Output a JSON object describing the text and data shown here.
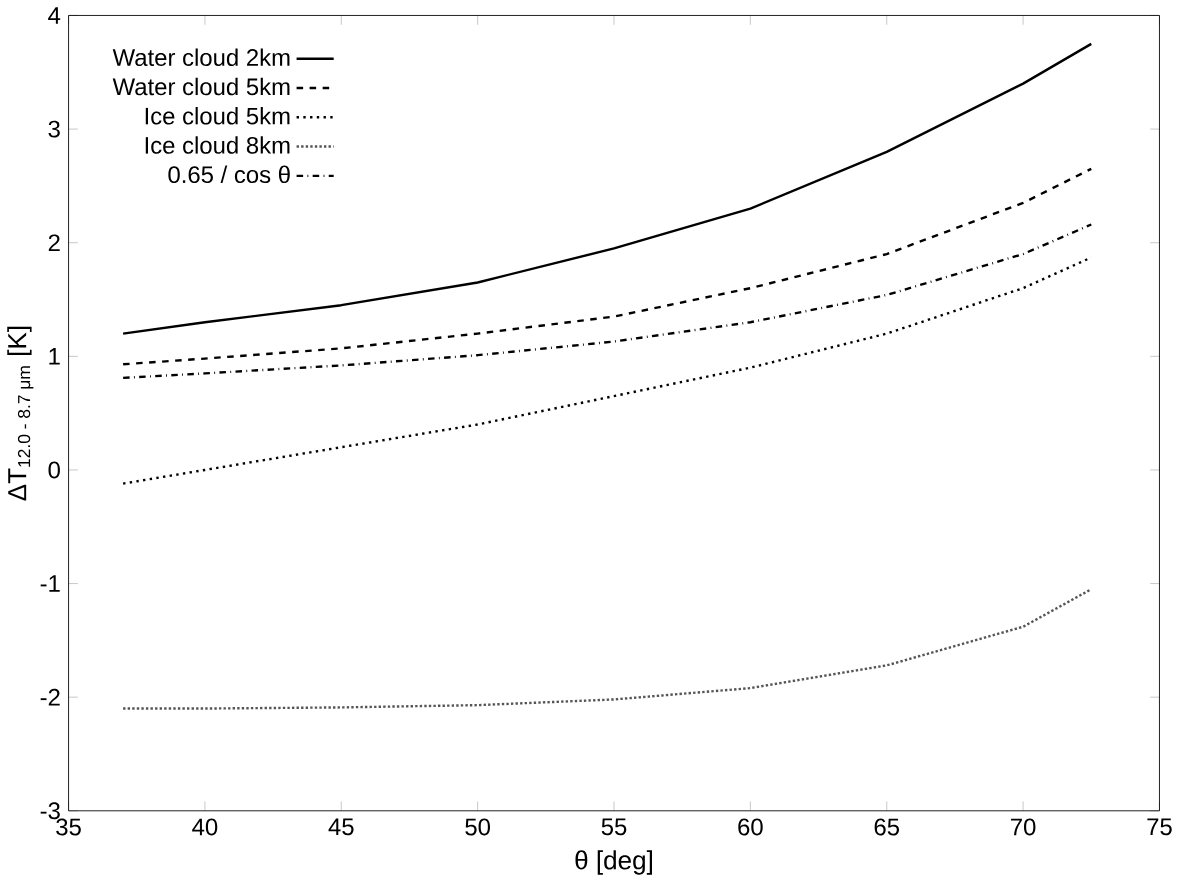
{
  "chart_data": {
    "type": "line",
    "xlabel": "θ [deg]",
    "ylabel": "ΔT$_{12.0 - 8.7 μm}$ [K]",
    "xlim": [
      35,
      75
    ],
    "xticks": [
      35,
      40,
      45,
      50,
      55,
      60,
      65,
      70,
      75
    ],
    "ylim": [
      -3,
      4
    ],
    "yticks": [
      -3,
      -2,
      -1,
      0,
      1,
      2,
      3,
      4
    ],
    "legend": "top left",
    "marker": "none",
    "grid": false,
    "series": [
      {
        "name": "Water cloud 2km",
        "color": "#000000",
        "line_style": "solid",
        "x": [
          37,
          40,
          45,
          50,
          55,
          60,
          65,
          70,
          72.5
        ],
        "values": [
          1.2,
          1.3,
          1.45,
          1.65,
          1.95,
          2.3,
          2.8,
          3.4,
          3.75
        ]
      },
      {
        "name": "Water cloud 5km",
        "color": "#000000",
        "line_style": "dashed",
        "x": [
          37,
          40,
          45,
          50,
          55,
          60,
          65,
          70,
          72.5
        ],
        "values": [
          0.93,
          0.98,
          1.07,
          1.2,
          1.35,
          1.6,
          1.9,
          2.35,
          2.65
        ]
      },
      {
        "name": "Ice cloud 5km",
        "color": "#000000",
        "line_style": "dotted",
        "x": [
          37,
          40,
          45,
          50,
          55,
          60,
          65,
          70,
          72.5
        ],
        "values": [
          -0.12,
          0.0,
          0.2,
          0.4,
          0.65,
          0.9,
          1.2,
          1.6,
          1.87
        ]
      },
      {
        "name": "Ice cloud 8km",
        "color": "#555555",
        "line_style": "densely dotted",
        "x": [
          37,
          40,
          45,
          50,
          55,
          60,
          65,
          70,
          72.5
        ],
        "values": [
          -2.1,
          -2.1,
          -2.09,
          -2.07,
          -2.02,
          -1.92,
          -1.72,
          -1.38,
          -1.05
        ]
      },
      {
        "name": "0.65 / cos θ",
        "color": "#000000",
        "line_style": "dashdotted",
        "x": [
          37,
          40,
          45,
          50,
          55,
          60,
          65,
          70,
          72.5
        ],
        "values": [
          0.81,
          0.85,
          0.92,
          1.01,
          1.13,
          1.3,
          1.54,
          1.9,
          2.16
        ]
      }
    ]
  }
}
